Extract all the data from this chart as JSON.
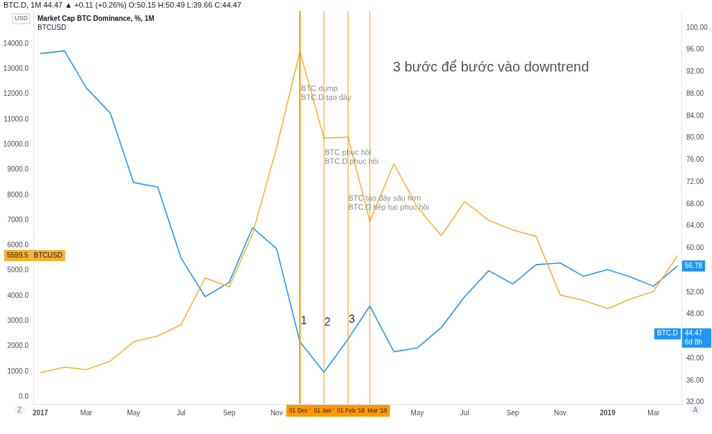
{
  "chart_data": {
    "type": "line",
    "title": "Market Cap BTC Dominance, %, 1M",
    "subtitle": "BTCUSD",
    "ylabel": "USD",
    "x": [
      "2017-01",
      "2017-02",
      "2017-03",
      "2017-04",
      "2017-05",
      "2017-06",
      "2017-07",
      "2017-08",
      "2017-09",
      "2017-10",
      "2017-11",
      "2017-12",
      "2018-01",
      "2018-02",
      "2018-03",
      "2018-04",
      "2018-05",
      "2018-06",
      "2018-07",
      "2018-08",
      "2018-09",
      "2018-10",
      "2018-11",
      "2018-12",
      "2019-01",
      "2019-02",
      "2019-03",
      "2019-04"
    ],
    "series": [
      {
        "name": "BTCUSD",
        "color": "#f9b234",
        "values": [
          950,
          1170,
          1070,
          1410,
          2180,
          2410,
          2850,
          4710,
          4360,
          6450,
          9880,
          13700,
          10260,
          10300,
          6960,
          9240,
          7520,
          6390,
          7740,
          7000,
          6610,
          6360,
          4030,
          3820,
          3490,
          3890,
          4170,
          5599.5
        ]
      },
      {
        "name": "BTC.D",
        "color": "#2196f3",
        "axis": "y2",
        "values": [
          95.3,
          95.8,
          89.1,
          84.5,
          71.9,
          71.1,
          58.2,
          51.2,
          53.8,
          63.7,
          59.9,
          43.0,
          37.5,
          43.5,
          49.5,
          41.2,
          41.9,
          45.6,
          51.2,
          55.9,
          53.5,
          57.0,
          57.3,
          54.9,
          56.1,
          54.7,
          53.1,
          56.78
        ],
        "value_labels": [
          null,
          null,
          null,
          null,
          null,
          null,
          null,
          null,
          null,
          null,
          null,
          null,
          null,
          null,
          null,
          null,
          null,
          null,
          null,
          null,
          null,
          null,
          null,
          null,
          null,
          null,
          null,
          "56.78"
        ]
      }
    ],
    "xlim": [
      "2016-12-23",
      "2019-04-06"
    ],
    "xticks": [
      {
        "value": "2017-01",
        "label": "2017"
      },
      {
        "value": "2017-03",
        "label": "Mar"
      },
      {
        "value": "2017-05",
        "label": "May"
      },
      {
        "value": "2017-07",
        "label": "Jul"
      },
      {
        "value": "2017-09",
        "label": "Sep"
      },
      {
        "value": "2017-11",
        "label": "Nov"
      },
      {
        "value": "2018-05",
        "label": "May"
      },
      {
        "value": "2018-07",
        "label": "Jul"
      },
      {
        "value": "2018-09",
        "label": "Sep"
      },
      {
        "value": "2018-11",
        "label": "Nov"
      },
      {
        "value": "2019-01",
        "label": "2019"
      },
      {
        "value": "2019-03",
        "label": "Mar"
      }
    ],
    "ylim": [
      -300,
      15300
    ],
    "yticks": [
      {
        "value": 0,
        "label": "0.0"
      },
      {
        "value": 1000,
        "label": "1000.0"
      },
      {
        "value": 2000,
        "label": "2000.0"
      },
      {
        "value": 3000,
        "label": "3000.0"
      },
      {
        "value": 4000,
        "label": "4000.0"
      },
      {
        "value": 5000,
        "label": "5000.0"
      },
      {
        "value": 6000,
        "label": "6000.0"
      },
      {
        "value": 7000,
        "label": "7000.0"
      },
      {
        "value": 8000,
        "label": "8000.0"
      },
      {
        "value": 9000,
        "label": "9000.0"
      },
      {
        "value": 10000,
        "label": "10000.0"
      },
      {
        "value": 11000,
        "label": "11000.0"
      },
      {
        "value": 12000,
        "label": "12000.0"
      },
      {
        "value": 13000,
        "label": "13000.0"
      },
      {
        "value": 14000,
        "label": "14000.0"
      }
    ],
    "y2lim": [
      31.7,
      103
    ],
    "y2ticks": [
      {
        "value": 32,
        "label": "32.00"
      },
      {
        "value": 36,
        "label": "36.00"
      },
      {
        "value": 40,
        "label": "40.00"
      },
      {
        "value": 48,
        "label": "48.00"
      },
      {
        "value": 52,
        "label": "52.00"
      },
      {
        "value": 60,
        "label": "60.00"
      },
      {
        "value": 64,
        "label": "64.00"
      },
      {
        "value": 68,
        "label": "68.00"
      },
      {
        "value": 72,
        "label": "72.00"
      },
      {
        "value": 76,
        "label": "76.00"
      },
      {
        "value": 80,
        "label": "80.00"
      },
      {
        "value": 84,
        "label": "84.00"
      },
      {
        "value": 88,
        "label": "88.00"
      },
      {
        "value": 92,
        "label": "92.00"
      },
      {
        "value": 96,
        "label": "96.00"
      },
      {
        "value": 100,
        "label": "100.00"
      }
    ],
    "ref_lines": [
      {
        "axis": "x",
        "value": "2017-12",
        "label": "01 Dec '",
        "color": "#ff9800"
      },
      {
        "axis": "x",
        "value": "2018-01",
        "label": "01 Jan '",
        "color": "#ff9800"
      },
      {
        "axis": "x",
        "value": "2018-02",
        "label": "01 Feb '18",
        "color": "#ff9800"
      },
      {
        "axis": "x",
        "value": "2018-03",
        "label": "Mar '18",
        "color": "#ff9800"
      }
    ],
    "annotations": [
      "BTC.D, 1M 44.47 ▲ +0.11 (+0.26%) O:50.15 H:50.49 L:39.66 C:44.47",
      "3 bước để bước vào downtrend",
      "BTC dump\nBTC.D tạo đáy",
      "BTC phục hồi\nBTC.D phục hồi",
      "BTC tạo đáy sâu hơn\nBTC.D tiếp tục phục hồi",
      "1",
      "2",
      "3",
      "44.47\n6d 8h",
      "Z",
      "A",
      "5599.5"
    ],
    "grid": false,
    "legend": false,
    "marker": "none",
    "line_style": "solid"
  }
}
